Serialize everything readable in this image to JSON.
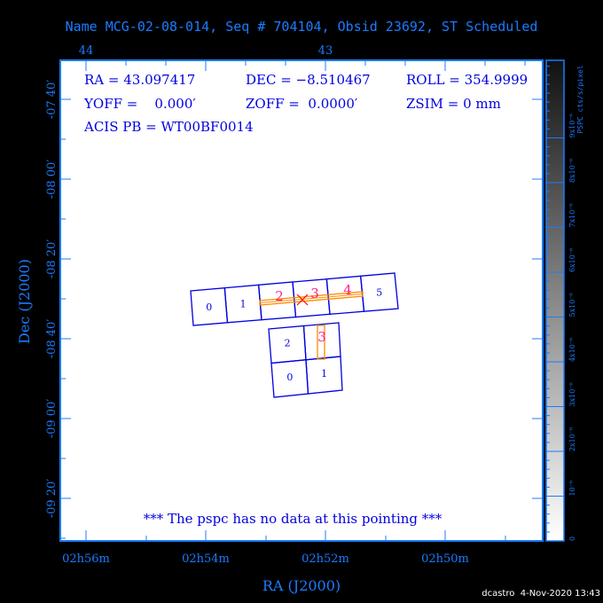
{
  "title": "Name MCG-02-08-014, Seq # 704104, Obsid 23692, ST Scheduled",
  "info": {
    "ra": "RA = 43.097417",
    "dec": "DEC = −8.510467",
    "roll": "ROLL = 354.9999",
    "yoff": "YOFF =    0.000′",
    "zoff": "ZOFF =  0.0000′",
    "zsim": "ZSIM = 0 mm",
    "acis_pb": "ACIS PB = WT00BF0014"
  },
  "message": "*** The pspc has no data at this pointing ***",
  "chart_data": {
    "type": "sky-field",
    "xlabel": "RA (J2000)",
    "ylabel": "Dec (J2000)",
    "x_ticks": [
      "02h56m",
      "02h54m",
      "02h52m",
      "02h50m"
    ],
    "top_ticks": [
      "44",
      "43"
    ],
    "y_ticks": [
      "-07 40′",
      "-08 00′",
      "-08 20′",
      "-08 40′",
      "-09 00′",
      "-09 20′"
    ],
    "colorbar": {
      "label": "PSPC cts/s/pixel",
      "ticks": [
        "0",
        "10⁻⁶",
        "2x10⁻⁶",
        "3x10⁻⁶",
        "4x10⁻⁶",
        "5x10⁻⁶",
        "6x10⁻⁶",
        "7x10⁻⁶",
        "8x10⁻⁶",
        "9x10⁻⁶"
      ]
    },
    "acis_s_chips": [
      "0",
      "1",
      "2",
      "3",
      "4",
      "5"
    ],
    "acis_i_chips": [
      "2",
      "3",
      "0",
      "1"
    ],
    "highlight_labels": [
      "2",
      "3",
      "4",
      "3"
    ],
    "colors": {
      "axis": "#1a7cff",
      "chips": "#0000e0",
      "highlight": "#ff8c00",
      "labels": "#ff1a8c",
      "aimpoint": "#ff0000"
    }
  },
  "footer": "dcastro  4-Nov-2020 13:43"
}
